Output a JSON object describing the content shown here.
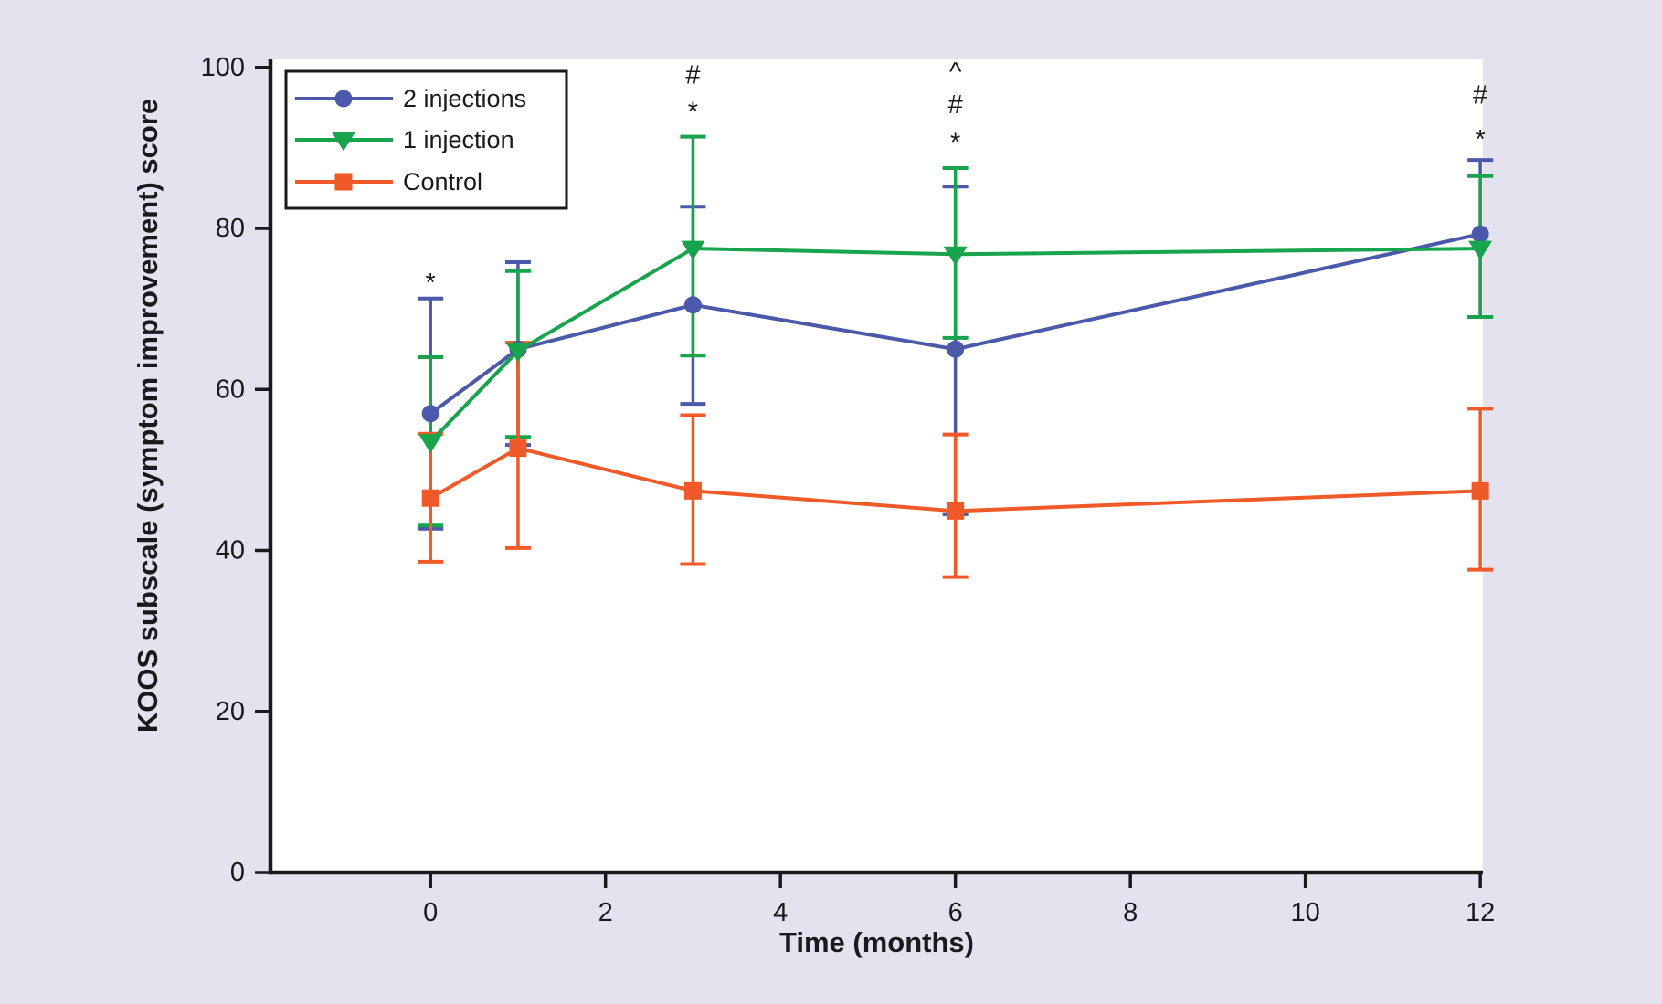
{
  "figure": {
    "background_color": "#E5E2F0",
    "plot_background_color": "#FFFFFF",
    "axis_color": "#1A1A1A",
    "text_color": "#1A1A1A"
  },
  "chart_data": {
    "type": "line",
    "title": "",
    "xlabel": "Time (months)",
    "ylabel": "KOOS subscale (symptom improvement) score",
    "x": [
      0,
      1,
      3,
      6,
      12
    ],
    "x_ticks": [
      0,
      2,
      4,
      6,
      8,
      10,
      12
    ],
    "y_ticks": [
      0,
      20,
      40,
      60,
      80,
      100
    ],
    "xlim": [
      -1.83,
      12.03
    ],
    "ylim": [
      0,
      101
    ],
    "grid": false,
    "legend_position": "top-left",
    "error_bars": true,
    "series": [
      {
        "name": "2 injections",
        "color": "#4A59AA",
        "marker": "circle",
        "values": [
          57.0,
          65.0,
          70.5,
          65.0,
          79.3
        ],
        "err_low": [
          42.7,
          53.1,
          58.2,
          44.5,
          69.0
        ],
        "err_high": [
          71.3,
          75.8,
          82.7,
          85.2,
          88.5
        ]
      },
      {
        "name": "1 injection",
        "color": "#18A34D",
        "marker": "triangle-down",
        "values": [
          53.5,
          64.8,
          77.5,
          76.8,
          77.5
        ],
        "err_low": [
          43.1,
          54.1,
          64.2,
          66.4,
          69.0
        ],
        "err_high": [
          64.0,
          74.7,
          91.4,
          87.5,
          86.5
        ]
      },
      {
        "name": "Control",
        "color": "#F05A28",
        "marker": "square",
        "values": [
          46.5,
          52.7,
          47.4,
          44.9,
          47.4
        ],
        "err_low": [
          38.6,
          40.3,
          38.3,
          36.7,
          37.6
        ],
        "err_high": [
          54.5,
          65.8,
          56.8,
          54.4,
          57.6
        ]
      }
    ],
    "annotations": [
      {
        "month": 0,
        "symbol": "*",
        "value": 73.2
      },
      {
        "month": 3,
        "symbol": "#",
        "value": 99.0
      },
      {
        "month": 3,
        "symbol": "*",
        "value": 94.5
      },
      {
        "month": 6,
        "symbol": "^",
        "value": 99.4
      },
      {
        "month": 6,
        "symbol": "#",
        "value": 95.3
      },
      {
        "month": 6,
        "symbol": "*",
        "value": 90.6
      },
      {
        "month": 12,
        "symbol": "#",
        "value": 96.5
      },
      {
        "month": 12,
        "symbol": "*",
        "value": 91.0
      }
    ]
  }
}
